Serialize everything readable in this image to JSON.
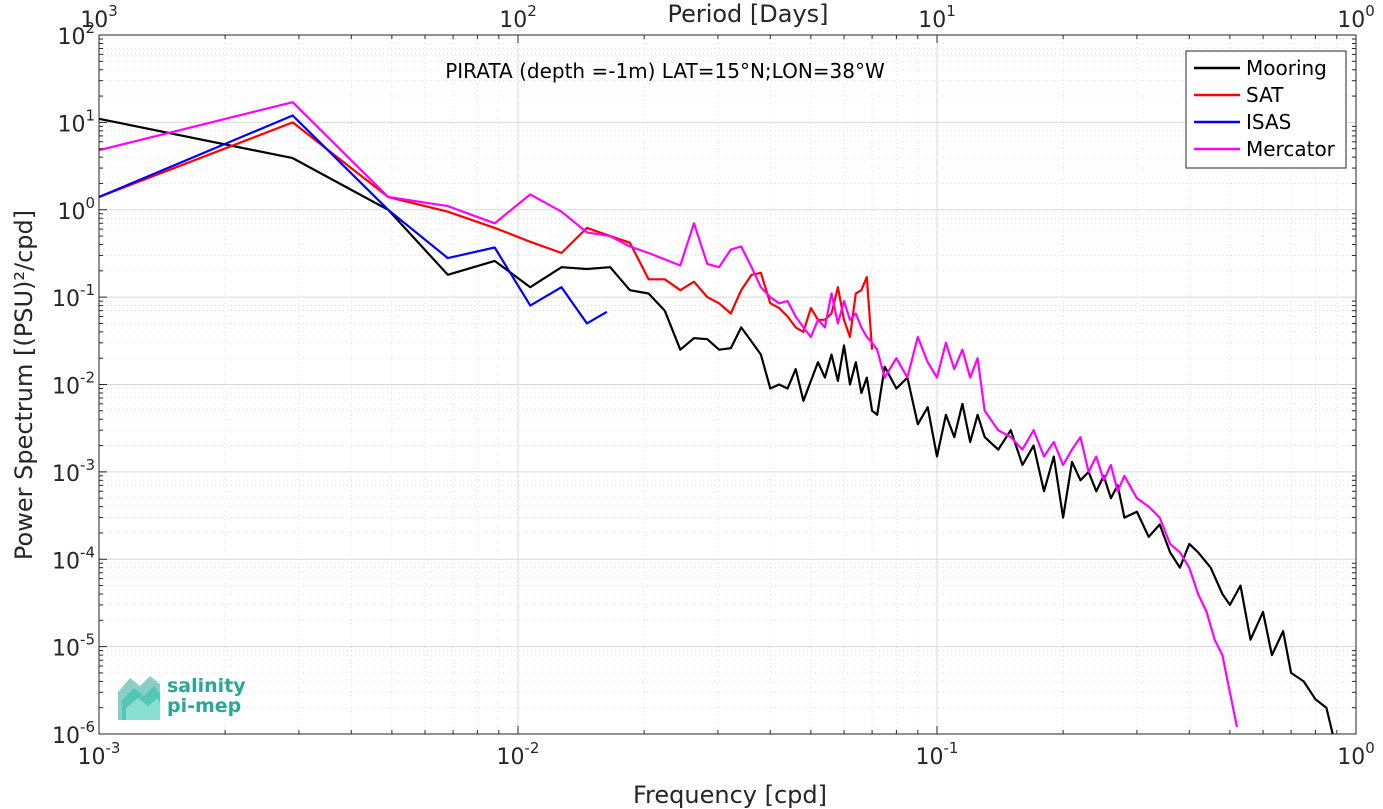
{
  "chart_data": {
    "type": "line",
    "title": "PIRATA (depth =-1m) LAT=15°N;LON=38°W",
    "xlabel": "Frequency [cpd]",
    "ylabel": "Power Spectrum [(PSU)²/cpd]",
    "x2label": "Period [Days]",
    "xscale": "log",
    "yscale": "log",
    "xlim": [
      0.001,
      1
    ],
    "ylim": [
      1e-06,
      100
    ],
    "grid": true,
    "legend_position": "top-right",
    "x_ticks": [
      {
        "value": 0.001,
        "base": "10",
        "exp": "-3"
      },
      {
        "value": 0.01,
        "base": "10",
        "exp": "-2"
      },
      {
        "value": 0.1,
        "base": "10",
        "exp": "-1"
      },
      {
        "value": 1,
        "base": "10",
        "exp": "0"
      }
    ],
    "y_ticks": [
      {
        "value": 1e-06,
        "base": "10",
        "exp": "-6"
      },
      {
        "value": 1e-05,
        "base": "10",
        "exp": "-5"
      },
      {
        "value": 0.0001,
        "base": "10",
        "exp": "-4"
      },
      {
        "value": 0.001,
        "base": "10",
        "exp": "-3"
      },
      {
        "value": 0.01,
        "base": "10",
        "exp": "-2"
      },
      {
        "value": 0.1,
        "base": "10",
        "exp": "-1"
      },
      {
        "value": 1,
        "base": "10",
        "exp": "0"
      },
      {
        "value": 10,
        "base": "10",
        "exp": "1"
      },
      {
        "value": 100,
        "base": "10",
        "exp": "2"
      }
    ],
    "top_ticks": [
      {
        "value": 0.001,
        "base": "10",
        "exp": "3"
      },
      {
        "value": 0.01,
        "base": "10",
        "exp": "2"
      },
      {
        "value": 0.1,
        "base": "10",
        "exp": "1"
      },
      {
        "value": 1,
        "base": "10",
        "exp": "0"
      }
    ],
    "series": [
      {
        "name": "Mooring",
        "color": "#000000",
        "x": [
          0.001,
          0.0029,
          0.0049,
          0.0068,
          0.0088,
          0.0107,
          0.0127,
          0.0146,
          0.0166,
          0.0185,
          0.0205,
          0.0224,
          0.0244,
          0.0263,
          0.0283,
          0.0302,
          0.0322,
          0.0341,
          0.0361,
          0.038,
          0.04,
          0.042,
          0.044,
          0.046,
          0.048,
          0.05,
          0.052,
          0.054,
          0.056,
          0.058,
          0.06,
          0.062,
          0.064,
          0.066,
          0.068,
          0.07,
          0.072,
          0.075,
          0.08,
          0.085,
          0.09,
          0.095,
          0.1,
          0.105,
          0.11,
          0.115,
          0.12,
          0.125,
          0.13,
          0.14,
          0.15,
          0.16,
          0.17,
          0.18,
          0.19,
          0.2,
          0.21,
          0.22,
          0.23,
          0.24,
          0.25,
          0.26,
          0.27,
          0.28,
          0.3,
          0.32,
          0.34,
          0.36,
          0.38,
          0.4,
          0.42,
          0.45,
          0.48,
          0.5,
          0.53,
          0.56,
          0.6,
          0.63,
          0.67,
          0.7,
          0.75,
          0.8,
          0.85,
          0.88
        ],
        "y": [
          11,
          3.9,
          1.0,
          0.18,
          0.26,
          0.13,
          0.22,
          0.21,
          0.22,
          0.12,
          0.11,
          0.07,
          0.025,
          0.034,
          0.033,
          0.025,
          0.026,
          0.045,
          0.031,
          0.022,
          0.009,
          0.01,
          0.009,
          0.015,
          0.0065,
          0.011,
          0.018,
          0.012,
          0.022,
          0.011,
          0.028,
          0.01,
          0.018,
          0.008,
          0.012,
          0.005,
          0.0045,
          0.016,
          0.009,
          0.012,
          0.0035,
          0.0055,
          0.0015,
          0.0045,
          0.0025,
          0.006,
          0.0022,
          0.0045,
          0.0025,
          0.0018,
          0.003,
          0.0012,
          0.002,
          0.0006,
          0.0015,
          0.0003,
          0.0013,
          0.0008,
          0.001,
          0.0006,
          0.0009,
          0.0005,
          0.0007,
          0.0003,
          0.00035,
          0.00018,
          0.00025,
          0.00012,
          8e-05,
          0.00015,
          0.00012,
          8e-05,
          4e-05,
          3e-05,
          5e-05,
          1.2e-05,
          2.5e-05,
          8e-06,
          1.5e-05,
          5e-06,
          4e-06,
          2.5e-06,
          2e-06,
          1e-06
        ]
      },
      {
        "name": "SAT",
        "color": "#ff0000",
        "x": [
          0.001,
          0.0029,
          0.0049,
          0.0068,
          0.0088,
          0.0107,
          0.0127,
          0.0146,
          0.0166,
          0.0185,
          0.0205,
          0.0224,
          0.0244,
          0.0263,
          0.0283,
          0.0302,
          0.0322,
          0.0341,
          0.0361,
          0.038,
          0.04,
          0.042,
          0.044,
          0.046,
          0.048,
          0.05,
          0.052,
          0.054,
          0.056,
          0.058,
          0.06,
          0.062,
          0.064,
          0.066,
          0.068,
          0.07
        ],
        "y": [
          1.4,
          10,
          1.4,
          0.95,
          0.62,
          0.43,
          0.32,
          0.62,
          0.5,
          0.42,
          0.16,
          0.16,
          0.12,
          0.15,
          0.1,
          0.085,
          0.065,
          0.12,
          0.18,
          0.19,
          0.085,
          0.075,
          0.06,
          0.045,
          0.04,
          0.075,
          0.055,
          0.055,
          0.065,
          0.13,
          0.055,
          0.035,
          0.11,
          0.12,
          0.17,
          0.025
        ]
      },
      {
        "name": "ISAS",
        "color": "#0000ff",
        "x": [
          0.001,
          0.0029,
          0.0049,
          0.0068,
          0.0088,
          0.0107,
          0.0127,
          0.0146,
          0.0163
        ],
        "y": [
          1.4,
          12,
          1.0,
          0.28,
          0.37,
          0.08,
          0.13,
          0.05,
          0.068
        ]
      },
      {
        "name": "Mercator",
        "color": "#ff00ff",
        "x": [
          0.001,
          0.0029,
          0.0049,
          0.0068,
          0.0088,
          0.0107,
          0.0127,
          0.0146,
          0.0166,
          0.0185,
          0.0205,
          0.0224,
          0.0244,
          0.0263,
          0.0283,
          0.0302,
          0.0322,
          0.0341,
          0.0361,
          0.038,
          0.04,
          0.042,
          0.044,
          0.046,
          0.048,
          0.05,
          0.052,
          0.054,
          0.056,
          0.058,
          0.06,
          0.062,
          0.064,
          0.066,
          0.068,
          0.07,
          0.072,
          0.075,
          0.08,
          0.085,
          0.09,
          0.095,
          0.1,
          0.105,
          0.11,
          0.115,
          0.12,
          0.125,
          0.13,
          0.14,
          0.15,
          0.16,
          0.17,
          0.18,
          0.19,
          0.2,
          0.21,
          0.22,
          0.23,
          0.24,
          0.25,
          0.26,
          0.27,
          0.28,
          0.3,
          0.32,
          0.34,
          0.36,
          0.38,
          0.4,
          0.42,
          0.44,
          0.46,
          0.48,
          0.5,
          0.52
        ],
        "y": [
          4.8,
          17,
          1.4,
          1.1,
          0.7,
          1.5,
          0.95,
          0.55,
          0.5,
          0.38,
          0.32,
          0.27,
          0.23,
          0.7,
          0.24,
          0.22,
          0.35,
          0.38,
          0.22,
          0.13,
          0.1,
          0.085,
          0.09,
          0.06,
          0.045,
          0.035,
          0.055,
          0.045,
          0.11,
          0.05,
          0.09,
          0.055,
          0.065,
          0.045,
          0.035,
          0.03,
          0.025,
          0.012,
          0.02,
          0.012,
          0.035,
          0.018,
          0.012,
          0.03,
          0.015,
          0.025,
          0.012,
          0.02,
          0.005,
          0.003,
          0.0025,
          0.0018,
          0.003,
          0.0015,
          0.0022,
          0.0012,
          0.0018,
          0.0025,
          0.001,
          0.0015,
          0.0008,
          0.0012,
          0.0006,
          0.0009,
          0.0005,
          0.0004,
          0.0003,
          0.00015,
          0.00012,
          8e-05,
          4e-05,
          2.5e-05,
          1.2e-05,
          8e-06,
          3e-06,
          1.2e-06
        ]
      }
    ]
  },
  "logo": {
    "line1": "salinity",
    "line2": "pi-mep",
    "color": "#2aa897"
  }
}
